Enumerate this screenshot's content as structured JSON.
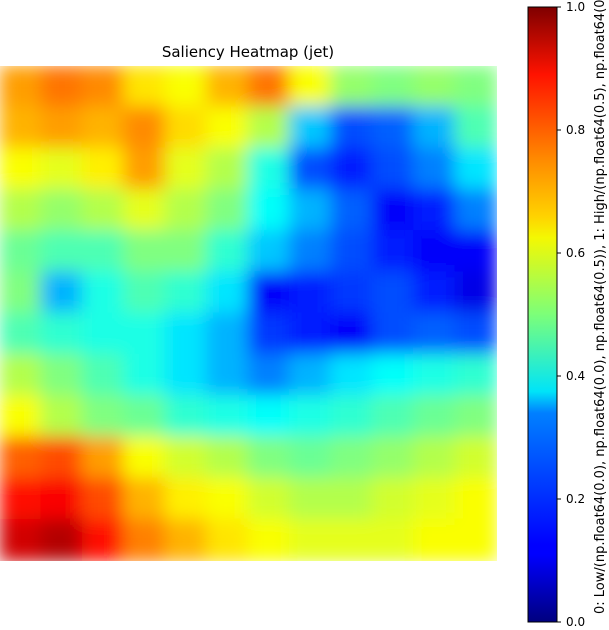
{
  "chart_data": {
    "type": "heatmap",
    "title": "Saliency Heatmap (jet)",
    "colormap": "jet",
    "value_range": [
      0.0,
      1.0
    ],
    "grid": false,
    "colorbar": {
      "position": "right",
      "label": "0: Low/(np.float64(0.0), np.float64(0.0), np.float64(0.5)), 1: High/(np.float64(0.5), np.float64(0.",
      "ticks": [
        0.0,
        0.2,
        0.4,
        0.6,
        0.8,
        1.0
      ],
      "tick_labels": [
        "0.0",
        "0.2",
        "0.4",
        "0.6",
        "0.8",
        "1.0"
      ]
    },
    "rows": 12,
    "cols": 12,
    "values": [
      [
        0.72,
        0.76,
        0.74,
        0.65,
        0.62,
        0.7,
        0.76,
        0.62,
        0.52,
        0.5,
        0.52,
        0.5
      ],
      [
        0.7,
        0.72,
        0.7,
        0.74,
        0.66,
        0.62,
        0.55,
        0.32,
        0.2,
        0.22,
        0.3,
        0.45
      ],
      [
        0.62,
        0.6,
        0.64,
        0.72,
        0.6,
        0.55,
        0.4,
        0.2,
        0.15,
        0.2,
        0.25,
        0.35
      ],
      [
        0.55,
        0.52,
        0.55,
        0.6,
        0.55,
        0.5,
        0.38,
        0.3,
        0.22,
        0.12,
        0.15,
        0.25
      ],
      [
        0.48,
        0.45,
        0.45,
        0.5,
        0.5,
        0.42,
        0.32,
        0.25,
        0.2,
        0.15,
        0.12,
        0.12
      ],
      [
        0.5,
        0.3,
        0.4,
        0.45,
        0.42,
        0.35,
        0.12,
        0.15,
        0.18,
        0.2,
        0.15,
        0.1
      ],
      [
        0.45,
        0.42,
        0.4,
        0.4,
        0.35,
        0.3,
        0.18,
        0.15,
        0.12,
        0.2,
        0.22,
        0.2
      ],
      [
        0.55,
        0.5,
        0.45,
        0.4,
        0.35,
        0.3,
        0.25,
        0.3,
        0.35,
        0.38,
        0.4,
        0.42
      ],
      [
        0.62,
        0.55,
        0.5,
        0.48,
        0.42,
        0.4,
        0.38,
        0.4,
        0.42,
        0.45,
        0.48,
        0.5
      ],
      [
        0.78,
        0.8,
        0.72,
        0.62,
        0.58,
        0.55,
        0.5,
        0.48,
        0.5,
        0.52,
        0.55,
        0.58
      ],
      [
        0.86,
        0.88,
        0.8,
        0.7,
        0.64,
        0.62,
        0.58,
        0.55,
        0.55,
        0.58,
        0.6,
        0.62
      ],
      [
        0.92,
        0.95,
        0.86,
        0.75,
        0.7,
        0.65,
        0.62,
        0.6,
        0.6,
        0.6,
        0.62,
        0.62
      ]
    ]
  }
}
